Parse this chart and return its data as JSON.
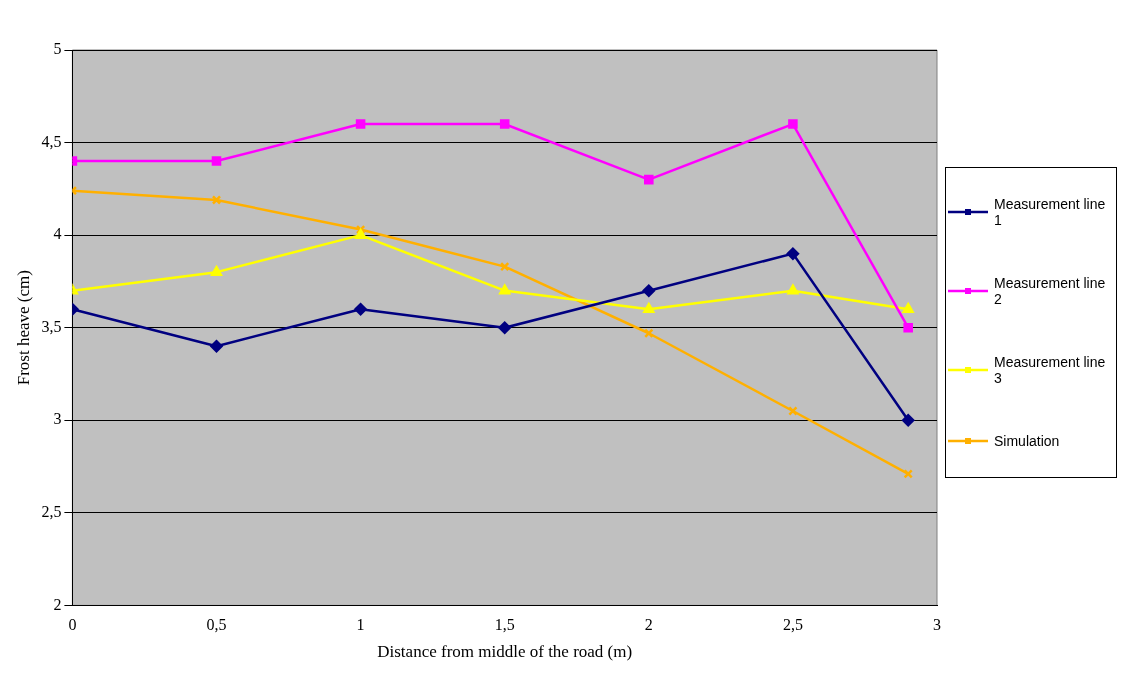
{
  "chart_data": {
    "type": "line",
    "xlabel": "Distance from middle of the road (m)",
    "ylabel": "Frost heave (cm)",
    "x": [
      0,
      0.5,
      1,
      1.5,
      2,
      2.5,
      2.9
    ],
    "series": [
      {
        "name": "Measurement line 1",
        "color": "#000080",
        "marker": "diamond",
        "values": [
          3.6,
          3.4,
          3.6,
          3.5,
          3.7,
          3.9,
          3.0
        ]
      },
      {
        "name": "Measurement line 2",
        "color": "#ff00ff",
        "marker": "square",
        "values": [
          4.4,
          4.4,
          4.6,
          4.6,
          4.3,
          4.6,
          3.5
        ]
      },
      {
        "name": "Measurement line 3",
        "color": "#ffff00",
        "marker": "triangle",
        "values": [
          3.7,
          3.8,
          4.0,
          3.7,
          3.6,
          3.7,
          3.6
        ]
      },
      {
        "name": "Simulation",
        "color": "#ffb000",
        "marker": "cross",
        "values": [
          4.24,
          4.19,
          4.03,
          3.83,
          3.47,
          3.05,
          2.71
        ]
      }
    ],
    "xlim": [
      0,
      3
    ],
    "xticks": [
      0,
      {
        "value": 0.5,
        "label": "0,5"
      },
      1,
      {
        "value": 1.5,
        "label": "1,5"
      },
      2,
      {
        "value": 2.5,
        "label": "2,5"
      },
      3
    ],
    "ylim": [
      2,
      5
    ],
    "yticks": [
      2,
      {
        "value": 2.5,
        "label": "2,5"
      },
      3,
      {
        "value": 3.5,
        "label": "3,5"
      },
      4,
      {
        "value": 4.5,
        "label": "4,5"
      },
      5
    ],
    "grid": "y",
    "legend": "right",
    "line_style": "solid"
  }
}
